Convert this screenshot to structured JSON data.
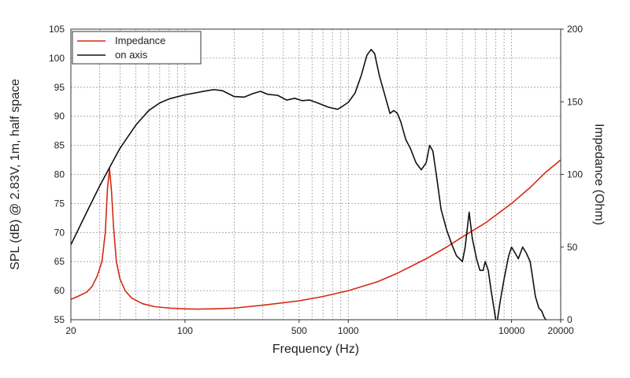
{
  "chart_data": {
    "type": "line",
    "xlabel": "Frequency (Hz)",
    "ylabel_left": "SPL (dB) @ 2.83V, 1m, half space",
    "ylabel_right": "Impedance (Ohm)",
    "x_scale": "log",
    "xlim": [
      20,
      20000
    ],
    "ylim_left": [
      55,
      105
    ],
    "ylim_right": [
      0,
      200
    ],
    "x_ticks": [
      "20",
      "100",
      "500",
      "1000",
      "10000",
      "20000"
    ],
    "y_ticks_left": [
      "55",
      "60",
      "65",
      "70",
      "75",
      "80",
      "85",
      "90",
      "95",
      "100",
      "105"
    ],
    "y_ticks_right": [
      "0",
      "50",
      "100",
      "150",
      "200"
    ],
    "grid": true,
    "legend_position": "top-left",
    "series": [
      {
        "name": "Impedance",
        "axis": "right",
        "color": "#d42a12",
        "points": [
          [
            20,
            14
          ],
          [
            22,
            16
          ],
          [
            25,
            19
          ],
          [
            27,
            23
          ],
          [
            29,
            30
          ],
          [
            31,
            40
          ],
          [
            32.5,
            60
          ],
          [
            33.5,
            90
          ],
          [
            34.5,
            104
          ],
          [
            35.5,
            88
          ],
          [
            36.5,
            64
          ],
          [
            38,
            40
          ],
          [
            40,
            28
          ],
          [
            43,
            20
          ],
          [
            47,
            15
          ],
          [
            55,
            11
          ],
          [
            65,
            9
          ],
          [
            80,
            8
          ],
          [
            100,
            7.5
          ],
          [
            120,
            7.3
          ],
          [
            150,
            7.5
          ],
          [
            200,
            8
          ],
          [
            300,
            10
          ],
          [
            500,
            13
          ],
          [
            700,
            16
          ],
          [
            1000,
            20
          ],
          [
            1500,
            26
          ],
          [
            2000,
            32
          ],
          [
            3000,
            42
          ],
          [
            4000,
            50
          ],
          [
            5000,
            57
          ],
          [
            7000,
            67
          ],
          [
            10000,
            80
          ],
          [
            13000,
            91
          ],
          [
            16000,
            101
          ],
          [
            20000,
            110
          ]
        ]
      },
      {
        "name": "on axis",
        "axis": "left",
        "color": "#111111",
        "points": [
          [
            20,
            67.9
          ],
          [
            25,
            73.5
          ],
          [
            30,
            78
          ],
          [
            35,
            81.5
          ],
          [
            40,
            84.5
          ],
          [
            50,
            88.5
          ],
          [
            60,
            91
          ],
          [
            70,
            92.3
          ],
          [
            80,
            93
          ],
          [
            100,
            93.7
          ],
          [
            130,
            94.3
          ],
          [
            150,
            94.6
          ],
          [
            170,
            94.4
          ],
          [
            200,
            93.4
          ],
          [
            230,
            93.3
          ],
          [
            260,
            93.9
          ],
          [
            290,
            94.3
          ],
          [
            320,
            93.8
          ],
          [
            370,
            93.6
          ],
          [
            420,
            92.8
          ],
          [
            470,
            93.1
          ],
          [
            520,
            92.7
          ],
          [
            580,
            92.8
          ],
          [
            650,
            92.3
          ],
          [
            750,
            91.6
          ],
          [
            860,
            91.2
          ],
          [
            920,
            91.7
          ],
          [
            1000,
            92.4
          ],
          [
            1100,
            94
          ],
          [
            1200,
            97
          ],
          [
            1300,
            100.5
          ],
          [
            1380,
            101.5
          ],
          [
            1450,
            100.8
          ],
          [
            1550,
            97
          ],
          [
            1700,
            93
          ],
          [
            1800,
            90.5
          ],
          [
            1900,
            91
          ],
          [
            2000,
            90.5
          ],
          [
            2100,
            89
          ],
          [
            2250,
            86
          ],
          [
            2400,
            84.5
          ],
          [
            2600,
            82
          ],
          [
            2800,
            80.8
          ],
          [
            3000,
            82
          ],
          [
            3150,
            85
          ],
          [
            3300,
            84
          ],
          [
            3500,
            79
          ],
          [
            3700,
            74
          ],
          [
            4000,
            70.5
          ],
          [
            4300,
            68
          ],
          [
            4600,
            66
          ],
          [
            5000,
            65
          ],
          [
            5200,
            67.5
          ],
          [
            5500,
            73.5
          ],
          [
            5750,
            69
          ],
          [
            6100,
            65.5
          ],
          [
            6400,
            63.5
          ],
          [
            6700,
            63.5
          ],
          [
            6900,
            65
          ],
          [
            7200,
            63.5
          ],
          [
            7500,
            60
          ],
          [
            7800,
            57
          ],
          [
            8000,
            55
          ]
        ]
      },
      {
        "name": "on axis",
        "axis": "left",
        "color": "#111111",
        "points": [
          [
            8200,
            55
          ],
          [
            8500,
            58
          ],
          [
            9000,
            62
          ],
          [
            9600,
            66
          ],
          [
            10000,
            67.5
          ],
          [
            10500,
            66.5
          ],
          [
            11000,
            65.5
          ],
          [
            11700,
            67.5
          ],
          [
            12300,
            66.5
          ],
          [
            13000,
            65
          ],
          [
            13500,
            62
          ],
          [
            14000,
            59
          ],
          [
            14700,
            57
          ],
          [
            15300,
            56.5
          ],
          [
            15800,
            55.5
          ],
          [
            16200,
            55
          ]
        ]
      }
    ]
  }
}
